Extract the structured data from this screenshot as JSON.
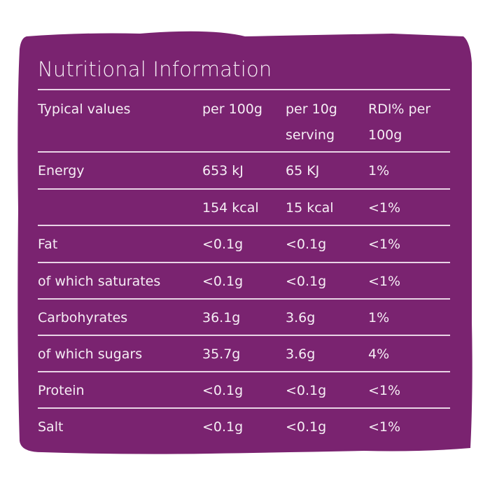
{
  "title": "Nutritional Information",
  "colors": {
    "panel": "#7a2370",
    "text": "#f6eef5",
    "rule": "#e9d4e6"
  },
  "header": {
    "col0": "Typical values",
    "col1": "per 100g",
    "col2a": "per 10g",
    "col2b": "serving",
    "col3a": "RDI% per",
    "col3b": "100g"
  },
  "rows": [
    [
      "Energy",
      "653 kJ",
      "65 KJ",
      "1%"
    ],
    [
      "",
      "154 kcal",
      "15 kcal",
      "<1%"
    ],
    [
      "Fat",
      "<0.1g",
      "<0.1g",
      "<1%"
    ],
    [
      "of which saturates",
      "<0.1g",
      "<0.1g",
      "<1%"
    ],
    [
      "Carbohyrates",
      "36.1g",
      "3.6g",
      "1%"
    ],
    [
      "of which sugars",
      "35.7g",
      "3.6g",
      "4%"
    ],
    [
      "Protein",
      "<0.1g",
      "<0.1g",
      "<1%"
    ],
    [
      "Salt",
      "<0.1g",
      "<0.1g",
      "<1%"
    ]
  ]
}
